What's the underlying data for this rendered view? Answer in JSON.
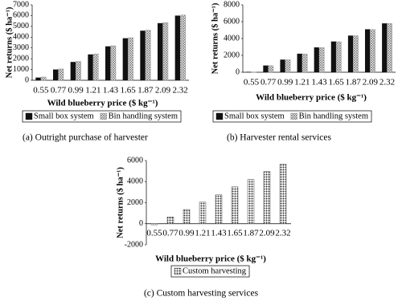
{
  "chart_data": [
    {
      "type": "bar",
      "caption": "(a) Outright purchase of harvester",
      "y_label": "Net returns ($ ha⁻¹)",
      "x_label": "Wild blueberry price ($ kg⁻¹)",
      "categories": [
        "0.55",
        "0.77",
        "0.99",
        "1.21",
        "1.43",
        "1.65",
        "1.87",
        "2.09",
        "2.32"
      ],
      "series": [
        {
          "name": "Small box system",
          "color": "#111111",
          "pattern": "solid",
          "values": [
            250,
            1000,
            1700,
            2400,
            3150,
            3900,
            4600,
            5300,
            6000
          ]
        },
        {
          "name": "Bin handling system",
          "color": "#8a8a8a",
          "pattern": "crosshatch",
          "values": [
            300,
            1050,
            1750,
            2450,
            3200,
            3950,
            4650,
            5350,
            6050
          ]
        }
      ],
      "ylim": [
        0,
        7000
      ],
      "yticks": [
        0,
        1000,
        2000,
        3000,
        4000,
        5000,
        6000,
        7000
      ],
      "grid": false
    },
    {
      "type": "bar",
      "caption": "(b) Harvester rental services",
      "y_label": "Net returns ($ ha⁻¹)",
      "x_label": "Wild blueberry price ($ kg⁻¹)",
      "categories": [
        "0.55",
        "0.77",
        "0.99",
        "1.21",
        "1.43",
        "1.65",
        "1.87",
        "2.09",
        "2.32"
      ],
      "series": [
        {
          "name": "Small box system",
          "color": "#111111",
          "pattern": "solid",
          "values": [
            50,
            800,
            1500,
            2200,
            2950,
            3650,
            4350,
            5100,
            5800
          ]
        },
        {
          "name": "Bin handling system",
          "color": "#8a8a8a",
          "pattern": "crosshatch",
          "values": [
            30,
            780,
            1480,
            2180,
            2920,
            3620,
            4330,
            5070,
            5780
          ]
        }
      ],
      "ylim": [
        0,
        8000
      ],
      "yticks": [
        0,
        2000,
        4000,
        6000,
        8000
      ],
      "grid": false
    },
    {
      "type": "bar",
      "caption": "(c) Custom harvesting services",
      "y_label": "Net returns ($ ha⁻¹)",
      "x_label": "Wild blueberry price ($ kg⁻¹)",
      "categories": [
        "0.55",
        "0.77",
        "0.99",
        "1.21",
        "1.43",
        "1.65",
        "1.87",
        "2.09",
        "2.32"
      ],
      "series": [
        {
          "name": "Custom harvesting",
          "color": "#333333",
          "pattern": "dots",
          "values": [
            -100,
            650,
            1350,
            2050,
            2750,
            3500,
            4200,
            4950,
            5650
          ]
        }
      ],
      "ylim": [
        -2000,
        6000
      ],
      "yticks": [
        -2000,
        0,
        2000,
        4000,
        6000
      ],
      "grid": false
    }
  ]
}
